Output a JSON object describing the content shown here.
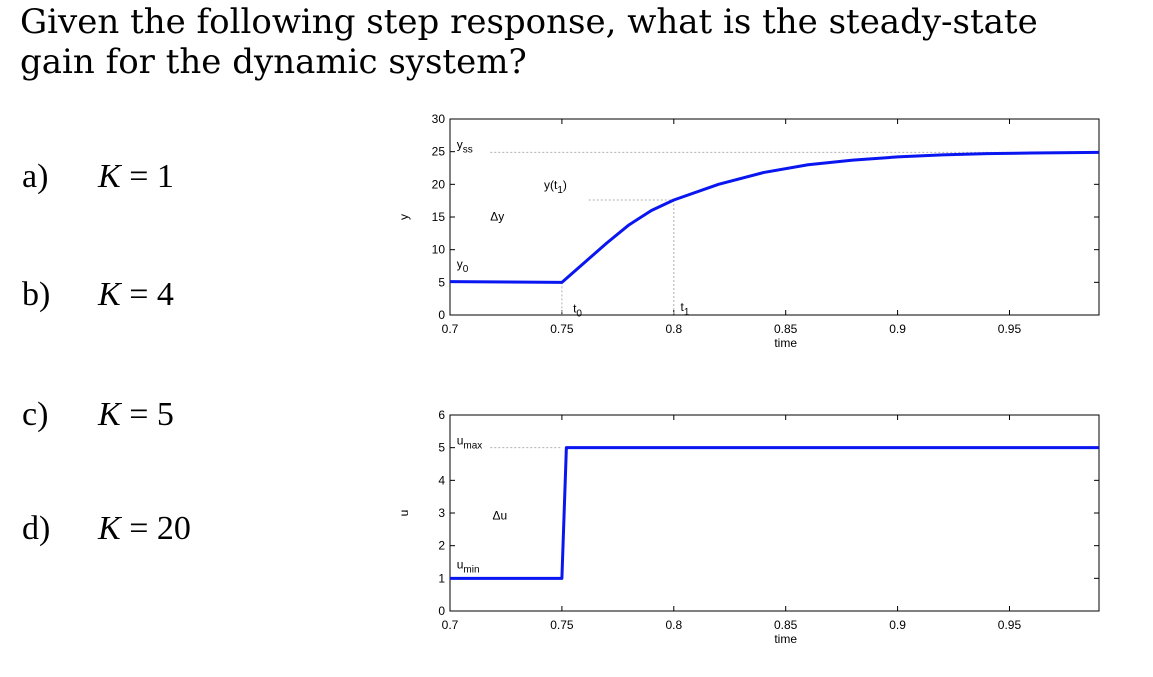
{
  "question": "Given the following step response, what is the steady-state gain for the dynamic system?",
  "options": [
    {
      "letter": "a)",
      "k": "K",
      "rest": " = 1"
    },
    {
      "letter": "b)",
      "k": "K",
      "rest": " = 4"
    },
    {
      "letter": "c)",
      "k": "K",
      "rest": " = 5"
    },
    {
      "letter": "d)",
      "k": "K",
      "rest": " = 20"
    }
  ],
  "colors": {
    "line": "#0a16f0",
    "axis": "#000000",
    "guide": "#b0b0b0"
  },
  "chart_data": [
    {
      "type": "line",
      "xlabel": "time",
      "ylabel": "y",
      "xlim": [
        0.7,
        0.99
      ],
      "ylim": [
        0,
        30
      ],
      "xticks": [
        "0.7",
        "0.75",
        "0.8",
        "0.85",
        "0.9",
        "0.95"
      ],
      "yticks": [
        "0",
        "5",
        "10",
        "15",
        "20",
        "25",
        "30"
      ],
      "grid": false,
      "series": [
        {
          "x": [
            0.7,
            0.75,
            0.76,
            0.77,
            0.78,
            0.79,
            0.8,
            0.82,
            0.84,
            0.86,
            0.88,
            0.9,
            0.92,
            0.94,
            0.96,
            0.99
          ],
          "y": [
            5.1,
            5.0,
            8.0,
            11.0,
            13.8,
            16.0,
            17.6,
            20.0,
            21.8,
            23.0,
            23.7,
            24.2,
            24.5,
            24.7,
            24.8,
            24.9
          ]
        }
      ],
      "annotations": [
        {
          "text": "y",
          "sub": "ss",
          "x": 0.703,
          "y": 25.5
        },
        {
          "text": "y(t",
          "sub": "1",
          "after": ")",
          "x": 0.742,
          "y": 19.3
        },
        {
          "text": "Δy",
          "x": 0.718,
          "y": 14.5
        },
        {
          "text": "y",
          "sub": "0",
          "x": 0.703,
          "y": 7.2
        },
        {
          "text": "t",
          "sub": "0",
          "x": 0.755,
          "y": 0.4
        },
        {
          "text": "t",
          "sub": "1",
          "x": 0.803,
          "y": 0.6
        }
      ]
    },
    {
      "type": "line",
      "xlabel": "time",
      "ylabel": "u",
      "xlim": [
        0.7,
        0.99
      ],
      "ylim": [
        0,
        6
      ],
      "xticks": [
        "0.7",
        "0.75",
        "0.8",
        "0.85",
        "0.9",
        "0.95"
      ],
      "yticks": [
        "0",
        "1",
        "2",
        "3",
        "4",
        "5",
        "6"
      ],
      "grid": false,
      "series": [
        {
          "x": [
            0.7,
            0.75,
            0.752,
            0.99
          ],
          "y": [
            1,
            1,
            5,
            5
          ]
        }
      ],
      "annotations": [
        {
          "text": "u",
          "sub": "max",
          "x": 0.703,
          "y": 5.1
        },
        {
          "text": "Δu",
          "x": 0.719,
          "y": 2.8
        },
        {
          "text": "u",
          "sub": "min",
          "x": 0.703,
          "y": 1.3
        }
      ]
    }
  ]
}
